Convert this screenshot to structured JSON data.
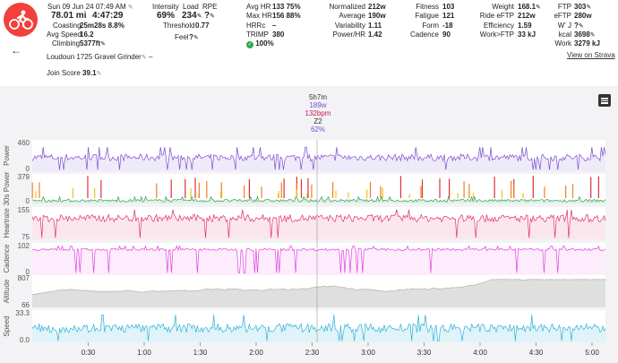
{
  "header": {
    "date": "Sun 09 Jun 24 07:49 AM",
    "distance": "78.01 mi",
    "duration": "4:47:29",
    "coasting_label": "Coasting",
    "coasting_value": "25m28s",
    "coasting_pct": "8.8%",
    "avg_speed_label": "Avg Speed",
    "avg_speed_value": "16.2",
    "climbing_label": "Climbing",
    "climbing_value": "5377ft",
    "ride_name": "Loudoun 1725 Gravel Grinder",
    "ride_name_dash": "–",
    "join_score_label": "Join Score",
    "join_score_value": "39.1",
    "back_icon": "arrow-left-icon",
    "strava_link": "View on Strava"
  },
  "intensity": {
    "label": "Intensity",
    "value": "69%"
  },
  "load": {
    "label": "Load",
    "value": "234"
  },
  "rpe": {
    "label": "RPE",
    "value": "?"
  },
  "threshold": {
    "label": "Threshold",
    "value": "0.77"
  },
  "feel": {
    "label": "Feel",
    "value": "?"
  },
  "hr": {
    "avg_label": "Avg HR",
    "avg_value": "133",
    "avg_pct": "75%",
    "max_label": "Max HR",
    "max_value": "156",
    "max_pct": "88%",
    "hrrc_label": "HRRc",
    "hrrc_value": "–",
    "trimp_label": "TRIMP",
    "trimp_value": "380",
    "ok_pct": "100%"
  },
  "power": {
    "normalized_label": "Normalized",
    "normalized_value": "212w",
    "average_label": "Average",
    "average_value": "190w",
    "variability_label": "Variability",
    "variability_value": "1.11",
    "powerhr_label": "Power/HR",
    "powerhr_value": "1.42"
  },
  "fitness": {
    "fitness_label": "Fitness",
    "fitness_value": "103",
    "fatigue_label": "Fatigue",
    "fatigue_value": "121",
    "form_label": "Form",
    "form_value": "-18",
    "cadence_label": "Cadence",
    "cadence_value": "90"
  },
  "rider": {
    "weight_label": "Weight",
    "weight_value": "168.1",
    "eftp_label": "Ride eFTP",
    "eftp_value": "212w",
    "efficiency_label": "Efficiency",
    "efficiency_value": "1.59",
    "work_label": "Work>FTP",
    "work_value": "33 kJ"
  },
  "ftp": {
    "ftp_label": "FTP",
    "ftp_value": "303",
    "eftp_label": "eFTP",
    "eftp_value": "280w",
    "wj_label": "W' J",
    "wj_value": "?",
    "kcal_label": "kcal",
    "kcal_value": "3698",
    "work_label": "Work",
    "work_value": "3279 kJ"
  },
  "tooltip": {
    "time": "5h7m",
    "power": "189w",
    "hr": "132bpm",
    "zone": "Z2",
    "pct": "62%"
  },
  "colors": {
    "brand": "#f2403b",
    "power": "#7b4fd0",
    "power30s_z1": "#2e9e4f",
    "power30s_z2": "#f0c020",
    "power30s_z3": "#f08020",
    "power30s_z4": "#e03030",
    "heartrate": "#e0306a",
    "cadence": "#e040e0",
    "altitude": "#b8b8b8",
    "speed": "#30b0d8"
  },
  "chart_data": {
    "type": "line",
    "x_ticks": [
      "0:30",
      "1:00",
      "1:30",
      "2:00",
      "2:30",
      "3:00",
      "3:30",
      "4:00",
      "4:30",
      "5:00"
    ],
    "xlim_hours": [
      0,
      5.12
    ],
    "panels": [
      {
        "name": "Power",
        "ticks": [
          "460",
          "0"
        ],
        "ylim": [
          0,
          460
        ],
        "base": 220,
        "var": 55,
        "spikes": 0.08
      },
      {
        "name": "30s Power",
        "ticks": [
          "379",
          "0"
        ],
        "ylim": [
          0,
          379
        ],
        "base": 40,
        "var": 18,
        "spikes": 0.06
      },
      {
        "name": "Heartrate",
        "ticks": [
          "155",
          "75"
        ],
        "ylim": [
          75,
          155
        ],
        "base": 132,
        "var": 10,
        "spikes": 0.05
      },
      {
        "name": "Cadence",
        "ticks": [
          "102",
          "0"
        ],
        "ylim": [
          0,
          102
        ],
        "base": 88,
        "var": 4,
        "spikes": 0.12
      },
      {
        "name": "Altitude",
        "ticks": [
          "807",
          "66"
        ],
        "ylim": [
          66,
          807
        ],
        "base": 400,
        "var": 120,
        "spikes": 0
      },
      {
        "name": "Speed",
        "ticks": [
          "33.3",
          "0.0"
        ],
        "ylim": [
          0,
          33.3
        ],
        "base": 16,
        "var": 5,
        "spikes": 0.05
      }
    ]
  }
}
